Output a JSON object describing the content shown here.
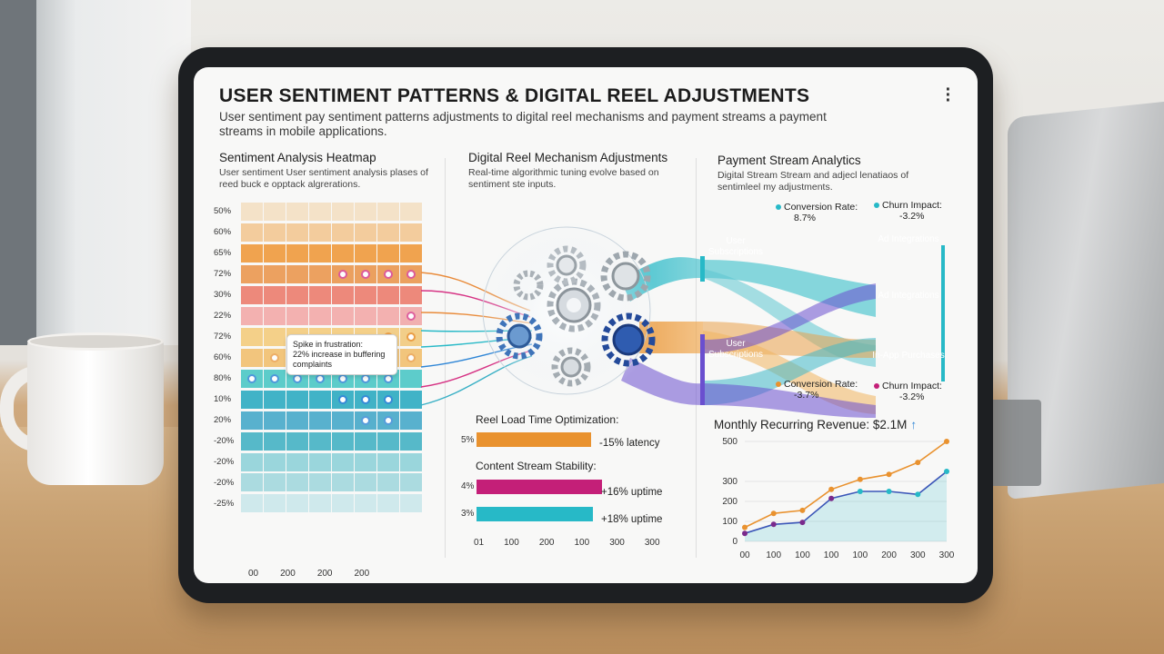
{
  "dashboard": {
    "title": "USER SENTIMENT PATTERNS & DIGITAL REEL ADJUSTMENTS",
    "subtitle": "User sentiment pay sentiment patterns adjustments to digital reel mechanisms and payment streams a payment streams in mobile applications."
  },
  "heatmap": {
    "title": "Sentiment Analysis Heatmap",
    "subtitle": "User sentiment User sentiment analysis plases of reed buck e opptack algrerations.",
    "row_labels": [
      "50%",
      "60%",
      "65%",
      "72%",
      "30%",
      "22%",
      "72%",
      "60%",
      "80%",
      "10%",
      "20%",
      "-20%",
      "-20%",
      "-20%",
      "-25%"
    ],
    "row_colors": [
      "#f3d9b5",
      "#f2c48c",
      "#ef9f48",
      "#e98b3a",
      "#eb7f70",
      "#f09a9a",
      "#f2c97a",
      "#f0b24e",
      "#3fc4c2",
      "#39b0c5",
      "#2f9fc3",
      "#48b3c4",
      "#7ccad3",
      "#9fd6dd",
      "#bfe3e8"
    ],
    "x_labels": [
      "00",
      "200",
      "200",
      "200"
    ],
    "callout": {
      "line1": "Spike in frustration:",
      "line2": "22% increase in buffering",
      "line3": "complaints"
    }
  },
  "mechanism": {
    "title": "Digital Reel Mechanism Adjustments",
    "subtitle": "Real-time algorithmic tuning evolve based on sentiment ste inputs.",
    "load_title": "Reel Load Time Optimization:",
    "stability_title": "Content Stream Stability:",
    "bars": [
      {
        "label": "5%",
        "value_text": "-15% latency",
        "fill": 0.87,
        "color": "#e9922f"
      },
      {
        "label": "4%",
        "value_text": "+16% uptime",
        "fill": 0.95,
        "color": "#c41f78"
      },
      {
        "label": "3%",
        "value_text": "+18% uptime",
        "fill": 0.88,
        "color": "#27b9c7"
      }
    ],
    "x_labels": [
      "01",
      "100",
      "200",
      "100",
      "300",
      "300"
    ]
  },
  "payment": {
    "title": "Payment Stream Analytics",
    "subtitle": "Digital Stream Stream and adjecl lenatiaos of sentimleel my adjustments.",
    "sources": [
      "User Subscriptions",
      "User Subscriptions"
    ],
    "targets": [
      "Ad Integrations",
      "Ad Integrations",
      "In-App Purchases"
    ],
    "metrics": {
      "top_left_label": "Conversion Rate:",
      "top_left_value": "8.7%",
      "top_right_label": "Churn Impact:",
      "top_right_value": "-3.2%",
      "bottom_left_label": "Conversion Rate:",
      "bottom_left_value": "-3.7%",
      "bottom_right_label": "Churn Impact:",
      "bottom_right_value": "-3.2%"
    },
    "mrr_label": "Monthly Recurring Revenue: $2.1M",
    "mrr_arrow": "↑"
  },
  "colors": {
    "teal": "#27b9c7",
    "orange": "#e9922f",
    "magenta": "#c41f78",
    "purple": "#6a4fcf",
    "blue": "#2f86d6"
  },
  "chart_data": {
    "type": "line",
    "title": "Monthly Recurring Revenue: $2.1M",
    "x": [
      "00",
      "100",
      "100",
      "100",
      "100",
      "200",
      "300",
      "300"
    ],
    "y_ticks": [
      0,
      100,
      200,
      300,
      500
    ],
    "series": [
      {
        "values": [
          70,
          140,
          155,
          260,
          310,
          335,
          395,
          500
        ]
      },
      {
        "values": [
          40,
          85,
          95,
          215,
          250,
          250,
          235,
          350
        ]
      }
    ],
    "ylim": [
      0,
      500
    ]
  }
}
